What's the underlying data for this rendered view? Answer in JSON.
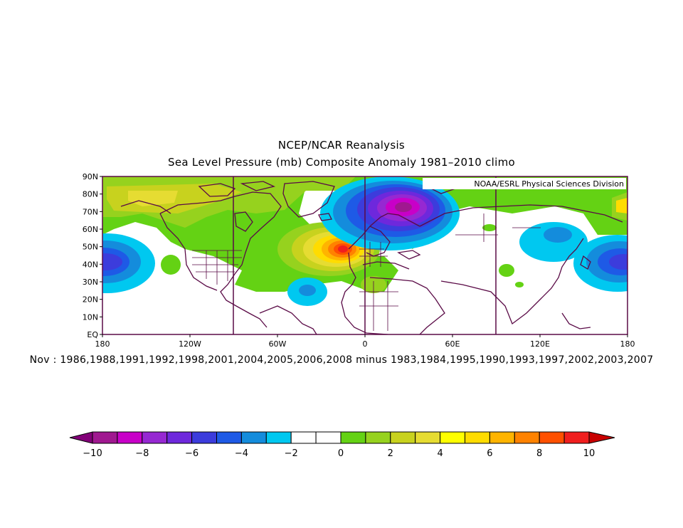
{
  "title_line1": "NCEP/NCAR Reanalysis",
  "title_line2": "Sea Level Pressure (mb) Composite Anomaly 1981–2010 climo",
  "credit": "NOAA/ESRL Physical Sciences Division",
  "caption": "Nov : 1986,1988,1991,1992,1998,2001,2004,2005,2006,2008 minus 1983,1984,1995,1990,1993,1997,2002,2003,2007",
  "map": {
    "projection": "cylindrical equidistant",
    "lon_range": [
      -180,
      180
    ],
    "lat_range": [
      0,
      90
    ],
    "lat_ticks": [
      "EQ",
      "10N",
      "20N",
      "30N",
      "40N",
      "50N",
      "60N",
      "70N",
      "80N",
      "90N"
    ],
    "lon_ticks": [
      "180",
      "120W",
      "60W",
      "0",
      "60E",
      "120E",
      "180"
    ],
    "features": [
      {
        "name": "Scandinavia / Norwegian Sea low",
        "lon": 30,
        "lat": 72,
        "anomaly_mb": -9
      },
      {
        "name": "North Atlantic high",
        "lon": -20,
        "lat": 49,
        "anomaly_mb": 9
      },
      {
        "name": "NE Pacific low",
        "lon": -172,
        "lat": 44,
        "anomaly_mb": -4
      },
      {
        "name": "NW Pacific low",
        "lon": 165,
        "lat": 44,
        "anomaly_mb": -4
      },
      {
        "name": "Alaska / Arctic high",
        "lon": -150,
        "lat": 74,
        "anomaly_mb": 4
      }
    ]
  },
  "colorbar": {
    "min": -10,
    "max": 10,
    "tick_labels": [
      "−10",
      "−8",
      "−6",
      "−4",
      "−2",
      "0",
      "2",
      "4",
      "6",
      "8",
      "10"
    ],
    "colors": [
      "#820078",
      "#a01890",
      "#c800c8",
      "#9628d2",
      "#6e28dc",
      "#3c3cdc",
      "#1e5ae6",
      "#148cdc",
      "#00c8f0",
      "#ffffff",
      "#ffffff",
      "#64d214",
      "#96d21e",
      "#c8d21e",
      "#e6dc32",
      "#ffff00",
      "#ffdc00",
      "#ffb400",
      "#ff8200",
      "#ff5000",
      "#f01e1e",
      "#c80000"
    ]
  }
}
